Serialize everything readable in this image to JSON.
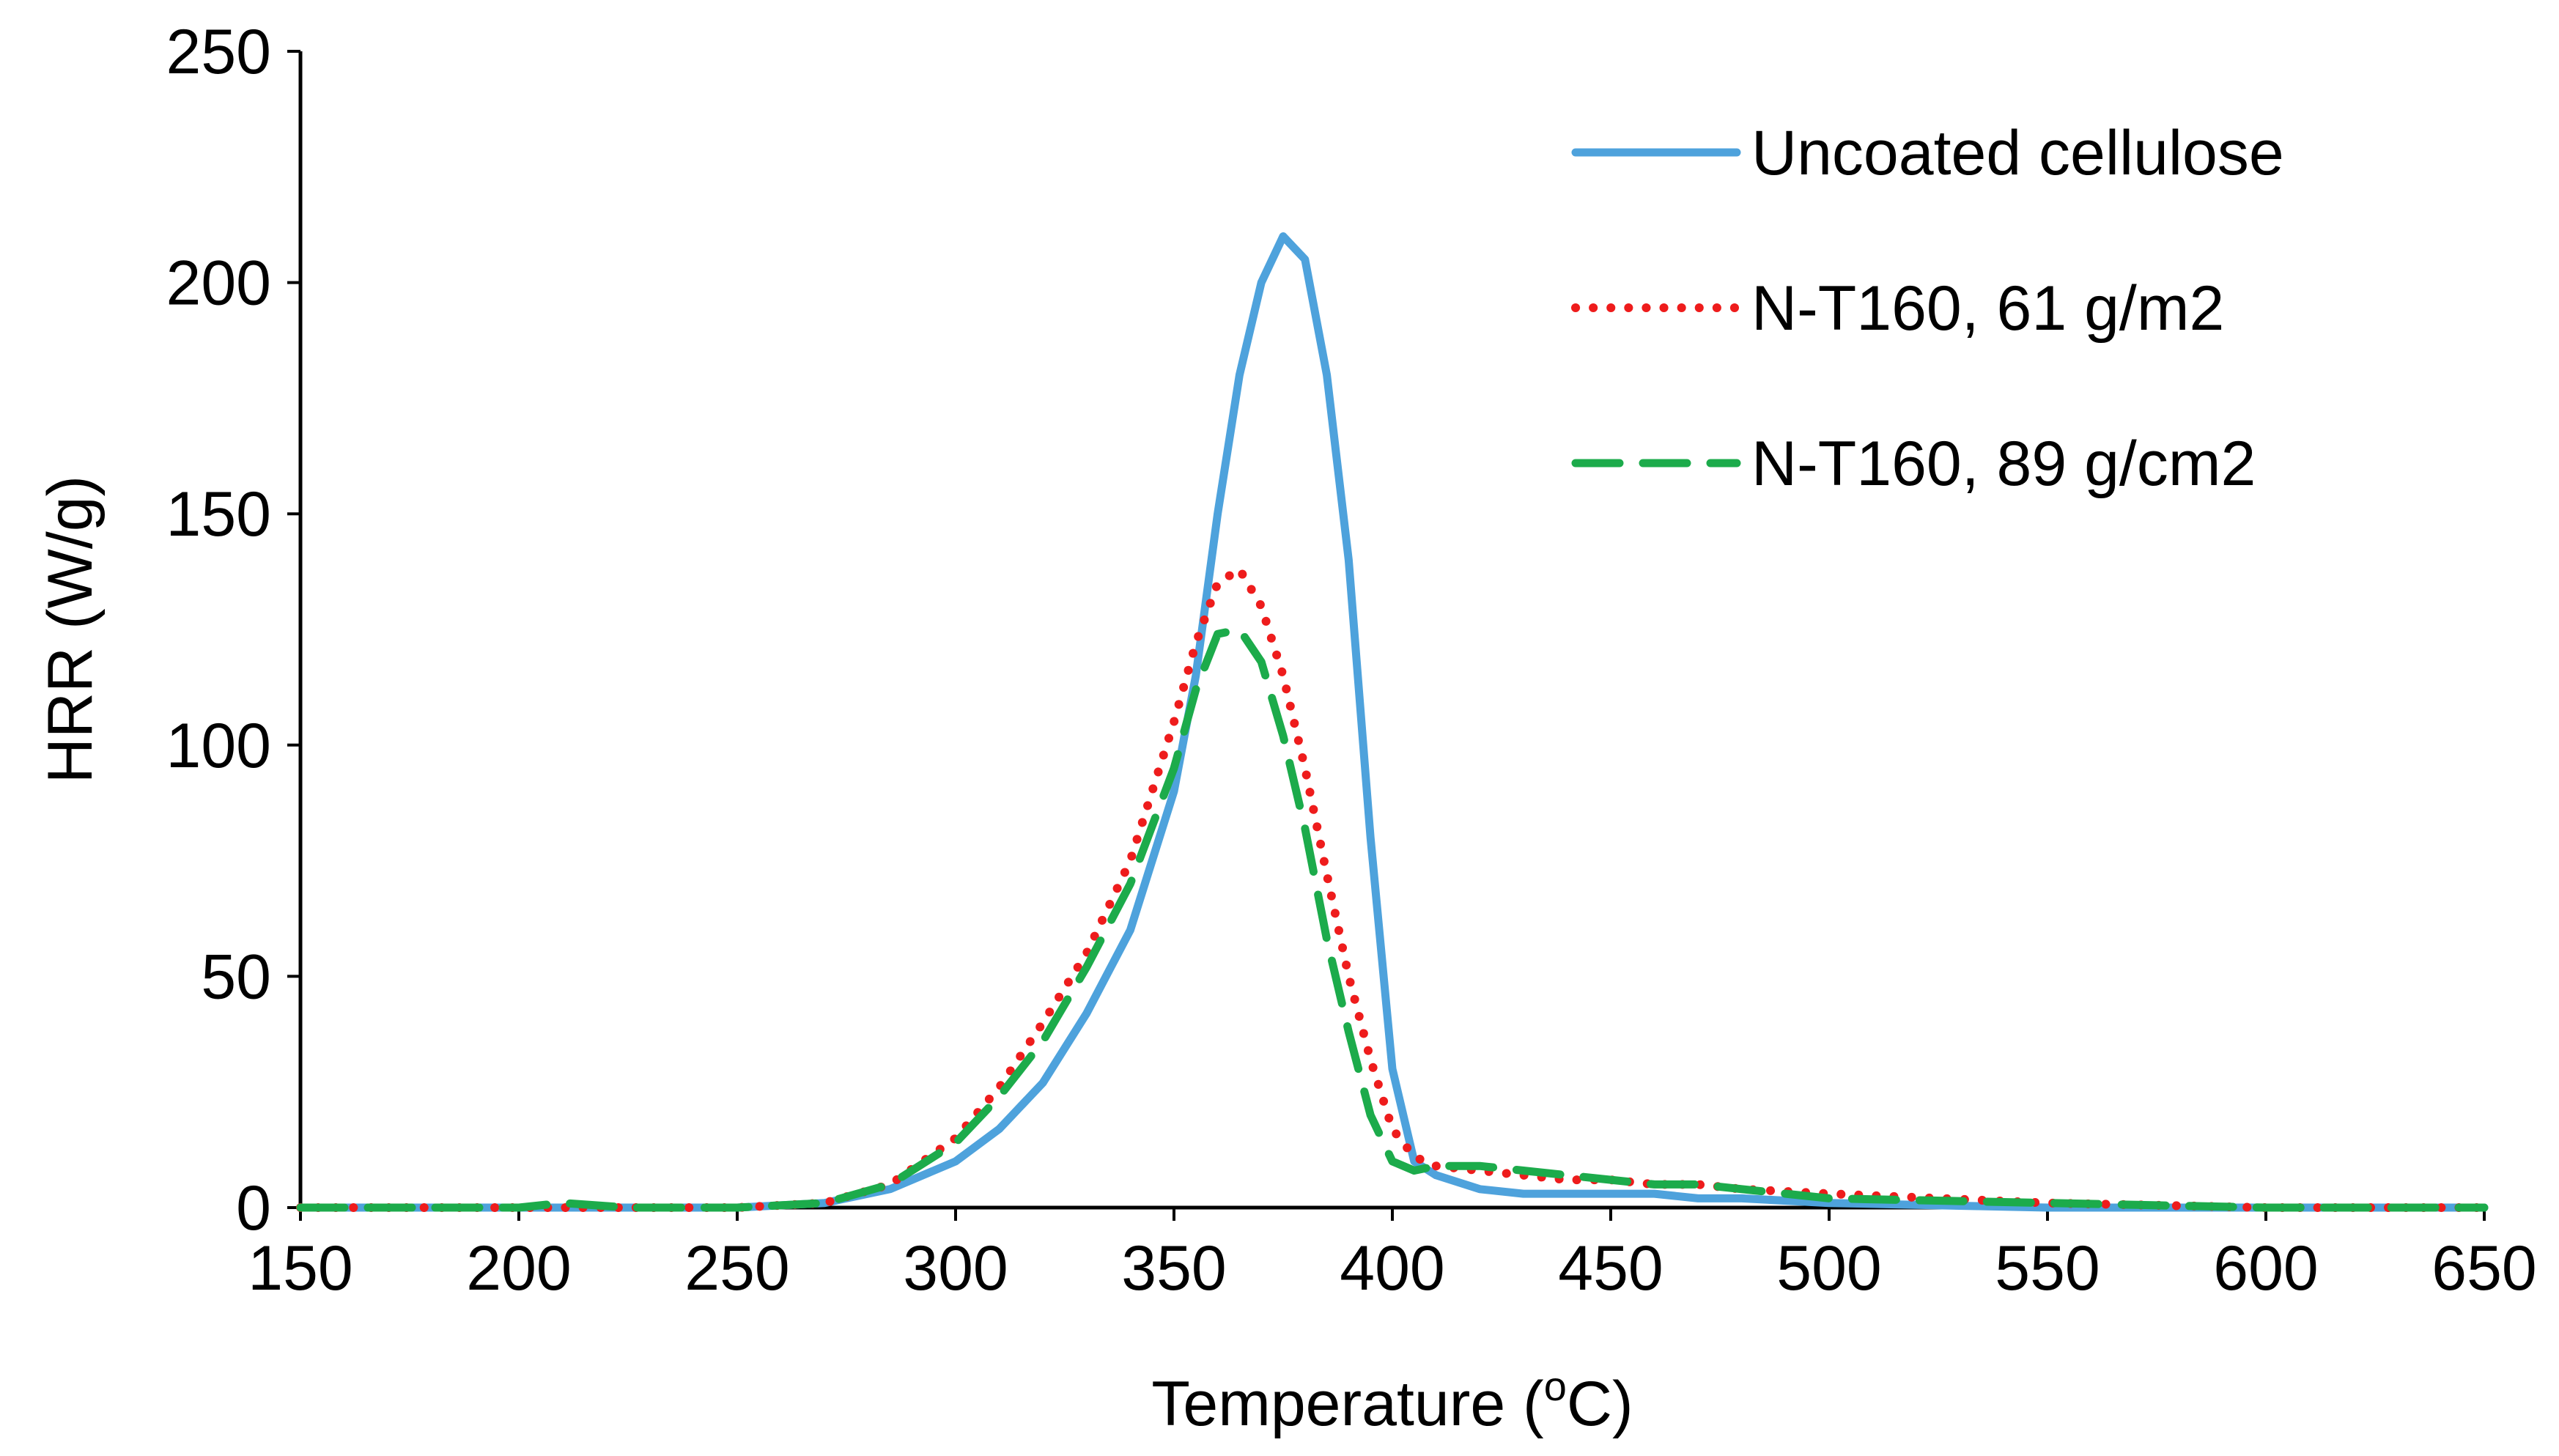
{
  "chart_data": {
    "type": "line",
    "title": "",
    "xlabel": "Temperature (",
    "xlabel_sup": "o",
    "xlabel_suffix": "C)",
    "ylabel": "HRR (W/g)",
    "xlim": [
      150,
      650
    ],
    "ylim": [
      0,
      250
    ],
    "xticks": [
      "150",
      "200",
      "250",
      "300",
      "350",
      "400",
      "450",
      "500",
      "550",
      "600",
      "650"
    ],
    "yticks": [
      "0",
      "50",
      "100",
      "150",
      "200",
      "250"
    ],
    "grid": false,
    "legend_position": "top-right",
    "series": [
      {
        "name": "Uncoated cellulose",
        "color": "#4ea2dc",
        "style": "solid",
        "x": [
          150,
          200,
          250,
          270,
          285,
          300,
          310,
          320,
          330,
          340,
          350,
          355,
          360,
          365,
          370,
          375,
          380,
          385,
          390,
          395,
          400,
          405,
          410,
          420,
          430,
          440,
          450,
          460,
          470,
          480,
          500,
          550,
          600,
          650
        ],
        "y": [
          0,
          0,
          0,
          1,
          4,
          10,
          17,
          27,
          42,
          60,
          90,
          115,
          150,
          180,
          200,
          210,
          205,
          180,
          140,
          80,
          30,
          10,
          7,
          4,
          3,
          3,
          3,
          3,
          2,
          2,
          1,
          0,
          0,
          0
        ]
      },
      {
        "name": "N-T160, 61 g/m2",
        "color": "#ee1c1c",
        "style": "dotted",
        "x": [
          150,
          200,
          250,
          270,
          285,
          300,
          310,
          320,
          330,
          340,
          350,
          355,
          360,
          365,
          370,
          375,
          380,
          385,
          390,
          395,
          400,
          405,
          410,
          420,
          430,
          440,
          450,
          460,
          470,
          480,
          500,
          550,
          600,
          650
        ],
        "y": [
          0,
          0,
          0,
          1,
          5,
          15,
          26,
          40,
          55,
          75,
          105,
          122,
          135,
          138,
          130,
          115,
          95,
          72,
          50,
          32,
          17,
          11,
          9,
          8,
          7,
          6,
          6,
          5,
          5,
          4,
          3,
          1,
          0,
          0
        ]
      },
      {
        "name": "N-T160, 89 g/cm2",
        "color": "#1cab4b",
        "style": "dashed",
        "x": [
          150,
          200,
          210,
          225,
          250,
          270,
          285,
          300,
          310,
          320,
          330,
          340,
          350,
          355,
          360,
          365,
          370,
          375,
          380,
          385,
          390,
          395,
          400,
          405,
          410,
          420,
          430,
          440,
          450,
          460,
          470,
          480,
          500,
          550,
          600,
          650
        ],
        "y": [
          0,
          0,
          1,
          0,
          0,
          1,
          5,
          14,
          24,
          36,
          52,
          70,
          95,
          112,
          124,
          125,
          118,
          102,
          82,
          58,
          38,
          20,
          10,
          8,
          9,
          9,
          8,
          7,
          6,
          5,
          5,
          4,
          2,
          1,
          0,
          0
        ]
      }
    ]
  }
}
